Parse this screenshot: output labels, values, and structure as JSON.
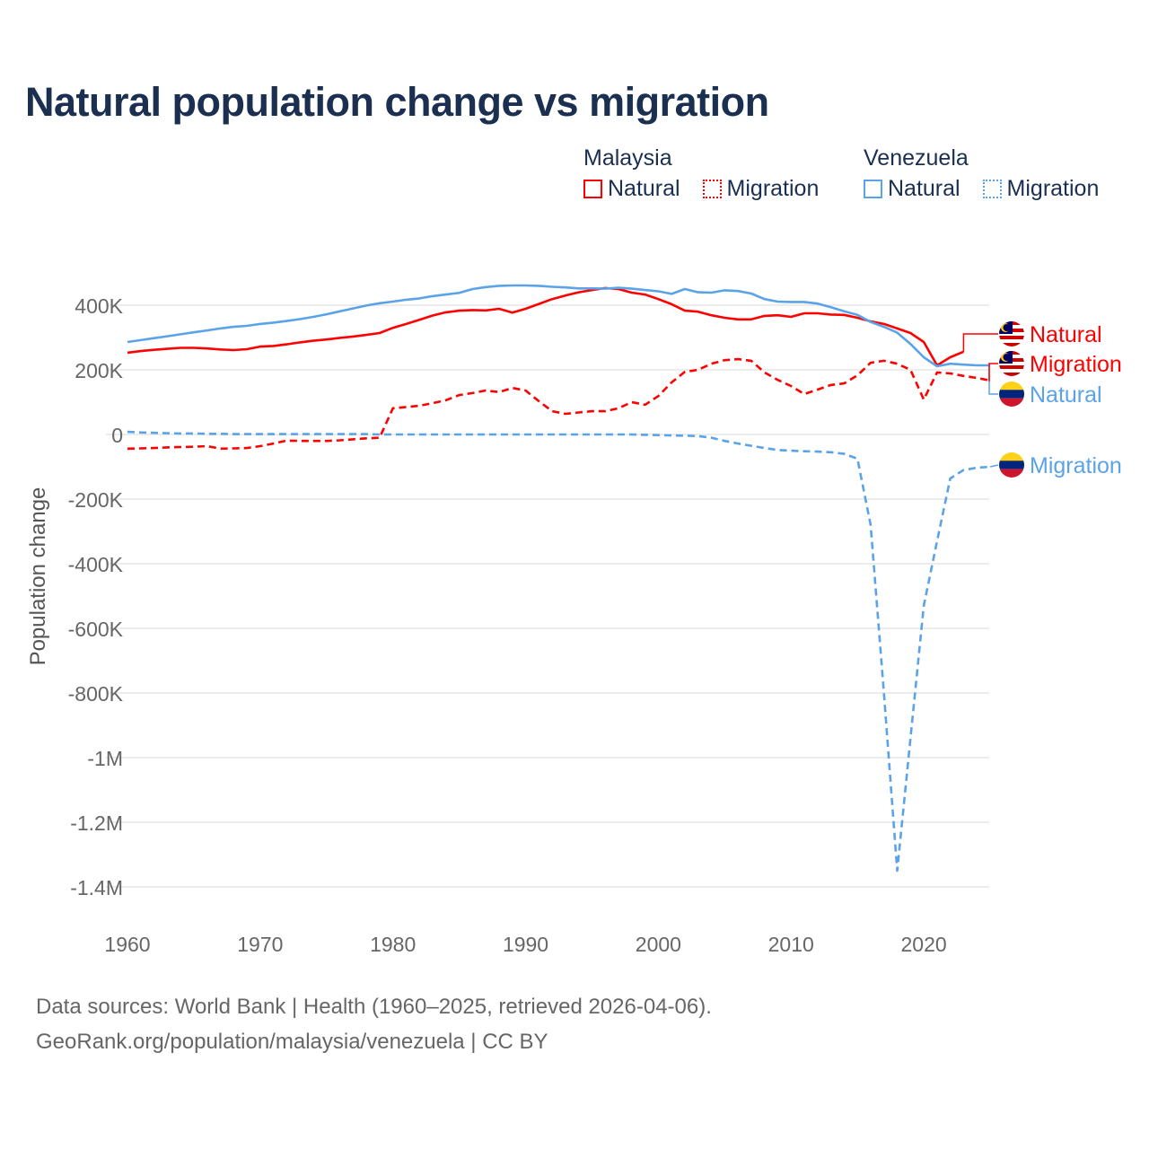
{
  "title": "Natural population change vs migration",
  "legend": {
    "groups": [
      {
        "name": "Malaysia",
        "color": "#ff0000",
        "items": [
          "Natural",
          "Migration"
        ]
      },
      {
        "name": "Venezuela",
        "color": "#5ba3e8",
        "items": [
          "Natural",
          "Migration"
        ]
      }
    ]
  },
  "footer": {
    "line1": "Data sources: World Bank | Health (1960–2025, retrieved 2026-04-06).",
    "line2": "GeoRank.org/population/malaysia/venezuela | CC BY"
  },
  "chart_data": {
    "type": "line",
    "title": "Natural population change vs migration",
    "xlabel": "",
    "ylabel": "Population change",
    "xlim": [
      1960,
      2025
    ],
    "ylim": [
      -1500000,
      500000
    ],
    "x_ticks": [
      1960,
      1970,
      1980,
      1990,
      2000,
      2010,
      2020
    ],
    "x_tick_labels": [
      "1960",
      "1970",
      "1980",
      "1990",
      "2000",
      "2010",
      "2020"
    ],
    "y_ticks": [
      400000,
      200000,
      0,
      -200000,
      -400000,
      -600000,
      -800000,
      -1000000,
      -1200000,
      -1400000
    ],
    "y_tick_labels": [
      "400K",
      "200K",
      "0",
      "-200K",
      "-400K",
      "-600K",
      "-800K",
      "-1M",
      "-1.2M",
      "-1.4M"
    ],
    "grid": true,
    "legend_position": "top-right",
    "series": [
      {
        "name": "Malaysia Natural",
        "country": "Malaysia",
        "label": "Natural",
        "color": "#ff0000",
        "dash": false,
        "x_start": 1960,
        "values_k": [
          253,
          258,
          262,
          265,
          268,
          268,
          266,
          263,
          261,
          264,
          272,
          274,
          279,
          285,
          290,
          294,
          299,
          303,
          308,
          314,
          330,
          342,
          355,
          368,
          378,
          383,
          385,
          384,
          389,
          377,
          389,
          404,
          419,
          430,
          440,
          447,
          453,
          450,
          439,
          433,
          419,
          403,
          383,
          380,
          369,
          361,
          356,
          356,
          367,
          369,
          364,
          375,
          375,
          371,
          370,
          361,
          350,
          342,
          328,
          314,
          286,
          214,
          239,
          256
        ]
      },
      {
        "name": "Venezuela Natural",
        "country": "Venezuela",
        "label": "Natural",
        "color": "#5ba3e8",
        "dash": false,
        "x_start": 1960,
        "values_k": [
          286,
          292,
          298,
          304,
          310,
          316,
          322,
          328,
          333,
          336,
          342,
          346,
          351,
          357,
          364,
          372,
          381,
          390,
          399,
          406,
          411,
          417,
          421,
          428,
          433,
          438,
          450,
          456,
          460,
          461,
          461,
          460,
          457,
          455,
          452,
          452,
          451,
          454,
          451,
          447,
          443,
          435,
          450,
          440,
          439,
          446,
          444,
          436,
          419,
          411,
          410,
          410,
          405,
          394,
          381,
          370,
          348,
          333,
          315,
          280,
          239,
          211,
          219,
          216,
          214,
          214
        ]
      },
      {
        "name": "Malaysia Migration",
        "country": "Malaysia",
        "label": "Migration",
        "color": "#ff0000",
        "dash": true,
        "x_start": 1960,
        "values_k": [
          -44,
          -43,
          -42,
          -40,
          -39,
          -38,
          -36,
          -44,
          -43,
          -42,
          -36,
          -28,
          -19,
          -20,
          -20,
          -20,
          -18,
          -15,
          -12,
          -10,
          81,
          85,
          89,
          97,
          106,
          122,
          128,
          136,
          131,
          144,
          136,
          103,
          72,
          64,
          68,
          72,
          72,
          81,
          100,
          92,
          119,
          161,
          194,
          200,
          219,
          230,
          233,
          228,
          192,
          169,
          150,
          125,
          139,
          153,
          158,
          183,
          222,
          228,
          219,
          200,
          108,
          192,
          189,
          181,
          175,
          167
        ]
      },
      {
        "name": "Venezuela Migration",
        "country": "Venezuela",
        "label": "Migration",
        "color": "#5ba3e8",
        "dash": true,
        "x_start": 1960,
        "values_k": [
          8,
          6,
          5,
          4,
          3,
          3,
          2,
          2,
          1,
          1,
          1,
          1,
          1,
          1,
          1,
          1,
          1,
          1,
          1,
          0,
          0,
          0,
          0,
          0,
          0,
          0,
          0,
          0,
          0,
          0,
          0,
          0,
          0,
          0,
          0,
          0,
          0,
          0,
          0,
          -1,
          -2,
          -3,
          -4,
          -5,
          -10,
          -20,
          -28,
          -35,
          -42,
          -48,
          -50,
          -52,
          -53,
          -55,
          -60,
          -75,
          -280,
          -800,
          -1350,
          -940,
          -530,
          -330,
          -136,
          -110,
          -103,
          -100
        ]
      }
    ]
  }
}
